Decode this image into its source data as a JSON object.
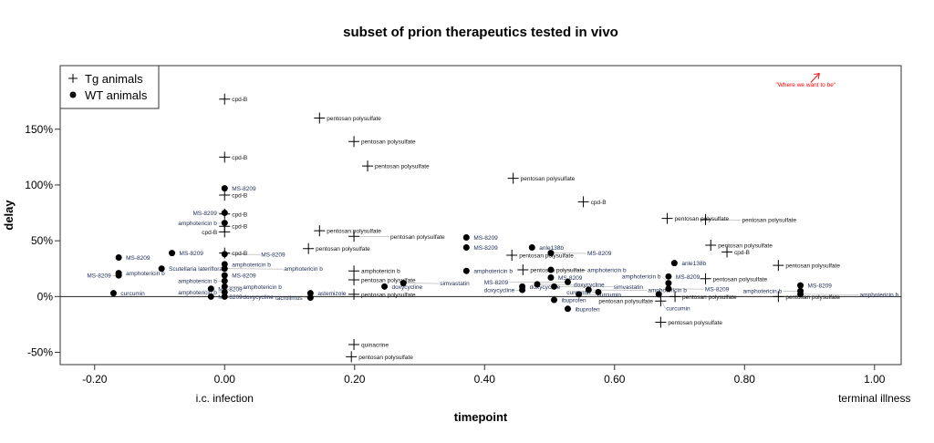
{
  "chart_data": {
    "type": "scatter",
    "title": "subset of prion therapeutics tested in vivo",
    "xlabel": "timepoint",
    "ylabel": "delay",
    "xlim": [
      -0.253,
      1.041
    ],
    "ylim": [
      -61,
      207
    ],
    "xticks": [
      -0.2,
      0.0,
      0.2,
      0.4,
      0.6,
      0.8,
      1.0
    ],
    "xtick_labels": [
      "-0.20",
      "0.00",
      "0.20",
      "0.40",
      "0.60",
      "0.80",
      "1.00"
    ],
    "yticks": [
      -50,
      0,
      50,
      100,
      150
    ],
    "ytick_labels": [
      "-50%",
      "0%",
      "50%",
      "100%",
      "150%"
    ],
    "x_extra_labels": [
      {
        "x": 0.0,
        "text": "i.c. infection"
      },
      {
        "x": 1.0,
        "text": "terminal illness"
      }
    ],
    "reference_line_y": 0,
    "grid": false,
    "legend": {
      "placement": "top-left",
      "entries": [
        {
          "marker": "plus",
          "text": "Tg animals"
        },
        {
          "marker": "dot",
          "text": "WT animals"
        }
      ]
    },
    "annotation": {
      "text": "\"Where we want to be\"",
      "color": "#ff0000",
      "x": 0.848,
      "y": 190,
      "arrow_from": [
        0.902,
        192
      ],
      "arrow_to": [
        0.915,
        200
      ]
    },
    "series": [
      {
        "name": "Tg animals",
        "marker": "plus",
        "points": [
          {
            "x": 0.0,
            "y": 177,
            "label": "cpd-B"
          },
          {
            "x": 0.0,
            "y": 125,
            "label": "cpd-B"
          },
          {
            "x": 0.0,
            "y": 91,
            "label": "cpd-B"
          },
          {
            "x": 0.0,
            "y": 74,
            "label": "cpd-B"
          },
          {
            "x": 0.0,
            "y": 63,
            "label": "cpd-B"
          },
          {
            "x": 0.0,
            "y": 58,
            "label": "cpd-B"
          },
          {
            "x": 0.0,
            "y": 39,
            "label": "cpd-B"
          },
          {
            "x": 0.146,
            "y": 160,
            "label": "pentosan polysulfate"
          },
          {
            "x": 0.199,
            "y": 139,
            "label": "pentosan polysulfate"
          },
          {
            "x": 0.22,
            "y": 117,
            "label": "pentosan polysulfate"
          },
          {
            "x": 0.444,
            "y": 106,
            "label": "pentosan polysulfate"
          },
          {
            "x": 0.552,
            "y": 85,
            "label": "cpd-B"
          },
          {
            "x": 0.146,
            "y": 59,
            "label": "pentosan polysulfate"
          },
          {
            "x": 0.199,
            "y": 54,
            "label": "pentosan polysulfate"
          },
          {
            "x": 0.129,
            "y": 43,
            "label": "pentosan polysulfate"
          },
          {
            "x": 0.199,
            "y": 23,
            "label": "amphotericin b"
          },
          {
            "x": 0.199,
            "y": 15,
            "label": "pentosan polysulfate"
          },
          {
            "x": 0.199,
            "y": 2,
            "label": "pentosan polysulfate"
          },
          {
            "x": 0.199,
            "y": -43,
            "label": "quinacrine"
          },
          {
            "x": 0.195,
            "y": -54,
            "label": "pentosan polysulfate"
          },
          {
            "x": 0.442,
            "y": 37,
            "label": "pentosan polysulfate"
          },
          {
            "x": 0.459,
            "y": 24,
            "label": "pentosan polysulfate"
          },
          {
            "x": 0.681,
            "y": 70,
            "label": "pentosan polysulfate"
          },
          {
            "x": 0.74,
            "y": 69,
            "label": "pentosan polysulfate"
          },
          {
            "x": 0.748,
            "y": 46,
            "label": "pentosan polysulfate"
          },
          {
            "x": 0.773,
            "y": 40,
            "label": "cpd-B"
          },
          {
            "x": 0.852,
            "y": 28,
            "label": "pentosan polysulfate"
          },
          {
            "x": 0.74,
            "y": 16,
            "label": "pentosan polysulfate"
          },
          {
            "x": 0.693,
            "y": 0,
            "label": "pentosan polysulfate"
          },
          {
            "x": 0.671,
            "y": -4,
            "label": "pentosan polysulfate"
          },
          {
            "x": 0.671,
            "y": -23,
            "label": "pentosan polysulfate"
          },
          {
            "x": 0.852,
            "y": 0,
            "label": "pentosan polysulfate"
          }
        ]
      },
      {
        "name": "WT animals",
        "marker": "dot",
        "points": [
          {
            "x": -0.163,
            "y": 35,
            "label": "MS-8209"
          },
          {
            "x": -0.163,
            "y": 21,
            "label": "amphotericin b"
          },
          {
            "x": -0.163,
            "y": 19,
            "label": "MS-8209"
          },
          {
            "x": -0.081,
            "y": 39,
            "label": "MS-8209"
          },
          {
            "x": -0.097,
            "y": 25,
            "label": "Scutellaria lateriflora"
          },
          {
            "x": -0.171,
            "y": 3,
            "label": "curcumin"
          },
          {
            "x": -0.021,
            "y": 7,
            "label": "MS-8209"
          },
          {
            "x": -0.021,
            "y": 0,
            "label": "MS-8209"
          },
          {
            "x": 0.0,
            "y": 97,
            "label": "MS-8209"
          },
          {
            "x": 0.0,
            "y": 75,
            "label": "MS-8209"
          },
          {
            "x": 0.0,
            "y": 66,
            "label": "amphotericin b"
          },
          {
            "x": 0.0,
            "y": 38,
            "label": "MS-8209"
          },
          {
            "x": 0.0,
            "y": 29,
            "label": "amphotericin b"
          },
          {
            "x": 0.0,
            "y": 25,
            "label": "amphotericin b"
          },
          {
            "x": 0.0,
            "y": 19,
            "label": "MS-8209"
          },
          {
            "x": 0.0,
            "y": 14,
            "label": "amphotericin b"
          },
          {
            "x": 0.0,
            "y": 9,
            "label": "amphotericin b"
          },
          {
            "x": 0.0,
            "y": 4,
            "label": "amphotericin b"
          },
          {
            "x": 0.0,
            "y": 0,
            "label": "doxycycline"
          },
          {
            "x": 0.132,
            "y": 3,
            "label": "astemizole"
          },
          {
            "x": 0.132,
            "y": -1,
            "label": "tacrolimus"
          },
          {
            "x": 0.246,
            "y": 9,
            "label": "doxycycline"
          },
          {
            "x": 0.275,
            "y": 12,
            "label": "simvastatin"
          },
          {
            "x": 0.372,
            "y": 53,
            "label": "MS-8209"
          },
          {
            "x": 0.372,
            "y": 44,
            "label": "MS-8209"
          },
          {
            "x": 0.372,
            "y": 23,
            "label": "amphotericin b"
          },
          {
            "x": 0.473,
            "y": 44,
            "label": "anle138b"
          },
          {
            "x": 0.502,
            "y": 39,
            "label": "MS-8209"
          },
          {
            "x": 0.502,
            "y": 24,
            "label": "amphotericin b"
          },
          {
            "x": 0.502,
            "y": 17,
            "label": "MS-8209"
          },
          {
            "x": 0.458,
            "y": 9,
            "label": "doxycycline"
          },
          {
            "x": 0.458,
            "y": 6,
            "label": "doxycycline"
          },
          {
            "x": 0.481,
            "y": 11,
            "label": "doxycycline"
          },
          {
            "x": 0.507,
            "y": 9,
            "label": "simvastatin"
          },
          {
            "x": 0.528,
            "y": 13,
            "label": "MS-8209"
          },
          {
            "x": 0.507,
            "y": -3,
            "label": "ibuprofen"
          },
          {
            "x": 0.528,
            "y": -11,
            "label": "ibuprofen"
          },
          {
            "x": 0.545,
            "y": 2,
            "label": "curcumin"
          },
          {
            "x": 0.56,
            "y": 6,
            "label": "amphotericin b"
          },
          {
            "x": 0.575,
            "y": 4,
            "label": "curcumin"
          },
          {
            "x": 0.692,
            "y": 30,
            "label": "anle138b"
          },
          {
            "x": 0.683,
            "y": 18,
            "label": "MS-8209"
          },
          {
            "x": 0.683,
            "y": 12,
            "label": "amphotericin b"
          },
          {
            "x": 0.683,
            "y": 7,
            "label": "MS-8209"
          },
          {
            "x": 0.668,
            "y": 2,
            "label": "curcumin"
          },
          {
            "x": 0.886,
            "y": 10,
            "label": "MS-8209"
          },
          {
            "x": 0.886,
            "y": 5,
            "label": "amphotericin b"
          },
          {
            "x": 0.886,
            "y": 2,
            "label": "amphotericin b"
          }
        ]
      }
    ]
  }
}
